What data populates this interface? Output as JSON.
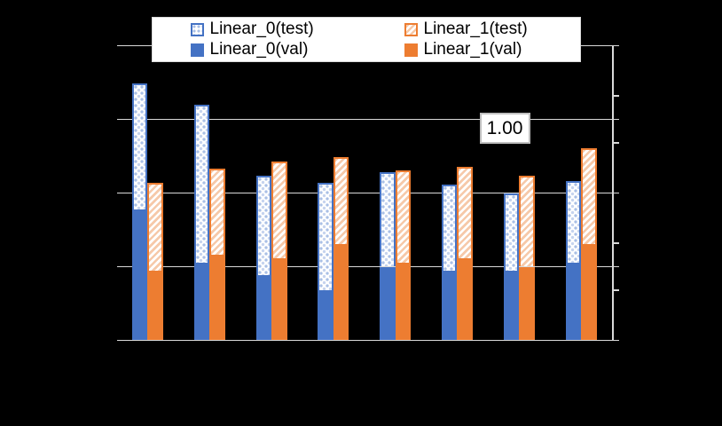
{
  "annotation": {
    "text": "1.00"
  },
  "colors": {
    "background": "#000000",
    "gridline": "#D9D9D9",
    "blue": "#4472C4",
    "blue_pattern_light": "#A9BFE6",
    "orange": "#ED7D31",
    "orange_pattern_light": "#F6C9A9",
    "legend_background": "#FFFFFF",
    "label_text": "#000000"
  },
  "legend": {
    "position": "top-center",
    "items": [
      "Linear_0(test)",
      "Linear_1(test)",
      "Linear_0(val)",
      "Linear_1(val)"
    ]
  },
  "chart_data": {
    "type": "bar",
    "title": "",
    "xlabel": "",
    "ylabel": "",
    "categories": [
      "",
      "",
      "",
      "",
      "",
      "",
      "",
      ""
    ],
    "note": "8 bar groups; x-axis category labels are not visible on the black background; only the value 1.00 is labeled on the value axis",
    "y_axis": {
      "scale": "log2",
      "min": 0.125,
      "max": 2.0,
      "side": "right",
      "gridline_values": [
        2.0,
        1.0,
        0.5,
        0.25,
        0.125
      ],
      "minor_tick_values": [
        1.25,
        0.8,
        0.3125,
        0.2
      ],
      "labeled_value": 1.0
    },
    "series": [
      {
        "name": "Linear_0(test)",
        "color": "#4472C4",
        "fill": "pattern-lattice",
        "values": [
          1.4,
          1.15,
          0.59,
          0.55,
          0.61,
          0.54,
          0.5,
          0.56
        ]
      },
      {
        "name": "Linear_0(val)",
        "color": "#4472C4",
        "fill": "solid",
        "values": [
          0.43,
          0.26,
          0.23,
          0.2,
          0.25,
          0.24,
          0.24,
          0.26
        ]
      },
      {
        "name": "Linear_1(test)",
        "color": "#ED7D31",
        "fill": "pattern-diagonal-stripes",
        "values": [
          0.55,
          0.63,
          0.67,
          0.7,
          0.62,
          0.64,
          0.59,
          0.76
        ]
      },
      {
        "name": "Linear_1(val)",
        "color": "#ED7D31",
        "fill": "solid",
        "values": [
          0.24,
          0.28,
          0.27,
          0.31,
          0.26,
          0.27,
          0.25,
          0.31
        ]
      }
    ],
    "legend_position": "top",
    "grid": true
  }
}
